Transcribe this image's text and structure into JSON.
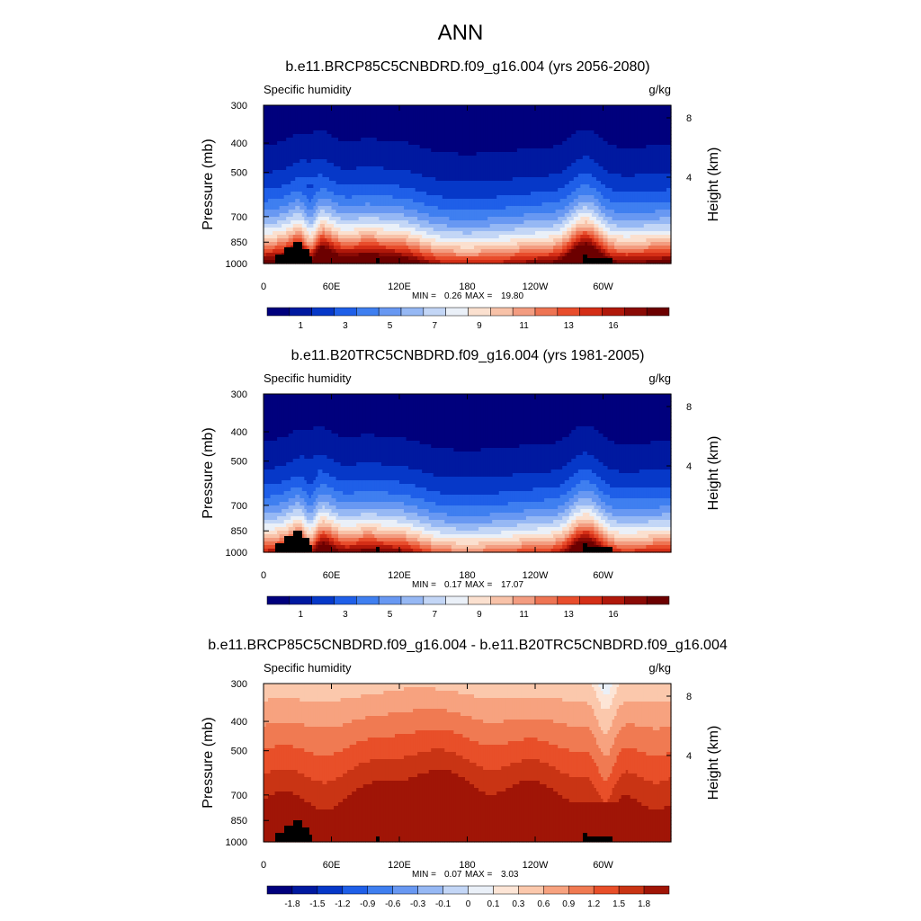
{
  "figure": {
    "title": "ANN"
  },
  "chart_data": [
    {
      "type": "heatmap",
      "title": "b.e11.BRCP85C5CNBDRD.f09_g16.004 (yrs 2056-2080)",
      "left_string": "Specific humidity",
      "right_string": "g/kg",
      "ylabel": "Pressure (mb)",
      "ylabel_right": "Height (km)",
      "x_ticks": [
        "0",
        "60E",
        "120E",
        "180",
        "120W",
        "60W"
      ],
      "y_ticks": [
        "300",
        "400",
        "500",
        "700",
        "850",
        "1000"
      ],
      "y_ticks_right": [
        "8",
        "4"
      ],
      "min_label": "MIN =",
      "min_value": "0.26",
      "max_label": "MAX =",
      "max_value": "19.80",
      "colorbar_labels": [
        "1",
        "3",
        "5",
        "7",
        "9",
        "11",
        "13",
        "16"
      ],
      "colors": [
        "#00007d",
        "#0019a0",
        "#0638c8",
        "#1f5fe8",
        "#3f7ff0",
        "#6898f2",
        "#96b8f4",
        "#c3d6f6",
        "#eaf0f8",
        "#fbe0cf",
        "#f8c2a8",
        "#f39c80",
        "#ee7453",
        "#e84d2c",
        "#d42e16",
        "#b0180a",
        "#8a0a05",
        "#6c0000"
      ],
      "field": "moist"
    },
    {
      "type": "heatmap",
      "title": "b.e11.B20TRC5CNBDRD.f09_g16.004 (yrs 1981-2005)",
      "left_string": "Specific humidity",
      "right_string": "g/kg",
      "ylabel": "Pressure (mb)",
      "ylabel_right": "Height (km)",
      "x_ticks": [
        "0",
        "60E",
        "120E",
        "180",
        "120W",
        "60W"
      ],
      "y_ticks": [
        "300",
        "400",
        "500",
        "700",
        "850",
        "1000"
      ],
      "y_ticks_right": [
        "8",
        "4"
      ],
      "min_label": "MIN =",
      "min_value": "0.17",
      "max_label": "MAX =",
      "max_value": "17.07",
      "colorbar_labels": [
        "1",
        "3",
        "5",
        "7",
        "9",
        "11",
        "13",
        "16"
      ],
      "colors": [
        "#00007d",
        "#0019a0",
        "#0638c8",
        "#1f5fe8",
        "#3f7ff0",
        "#6898f2",
        "#96b8f4",
        "#c3d6f6",
        "#eaf0f8",
        "#fbe0cf",
        "#f8c2a8",
        "#f39c80",
        "#ee7453",
        "#e84d2c",
        "#d42e16",
        "#b0180a",
        "#8a0a05",
        "#6c0000"
      ],
      "field": "moist"
    },
    {
      "type": "heatmap",
      "title": "b.e11.BRCP85C5CNBDRD.f09_g16.004 - b.e11.B20TRC5CNBDRD.f09_g16.004",
      "left_string": "Specific humidity",
      "right_string": "g/kg",
      "ylabel": "Pressure (mb)",
      "ylabel_right": "Height (km)",
      "x_ticks": [
        "0",
        "60E",
        "120E",
        "180",
        "120W",
        "60W"
      ],
      "y_ticks": [
        "300",
        "400",
        "500",
        "700",
        "850",
        "1000"
      ],
      "y_ticks_right": [
        "8",
        "4"
      ],
      "min_label": "MIN =",
      "min_value": "0.07",
      "max_label": "MAX =",
      "max_value": "3.03",
      "colorbar_labels": [
        "-1.8",
        "-1.5",
        "-1.2",
        "-0.9",
        "-0.6",
        "-0.3",
        "-0.1",
        "0",
        "0.1",
        "0.3",
        "0.6",
        "0.9",
        "1.2",
        "1.5",
        "1.8"
      ],
      "colors": [
        "#00007d",
        "#0019a0",
        "#0638c8",
        "#1f5fe8",
        "#3f7ff0",
        "#6898f2",
        "#96b8f4",
        "#c3d6f6",
        "#eaf0f8",
        "#fde5d6",
        "#fbc8ac",
        "#f7a27f",
        "#f07a52",
        "#e84f29",
        "#c93414",
        "#a01506"
      ],
      "field": "diff"
    }
  ]
}
